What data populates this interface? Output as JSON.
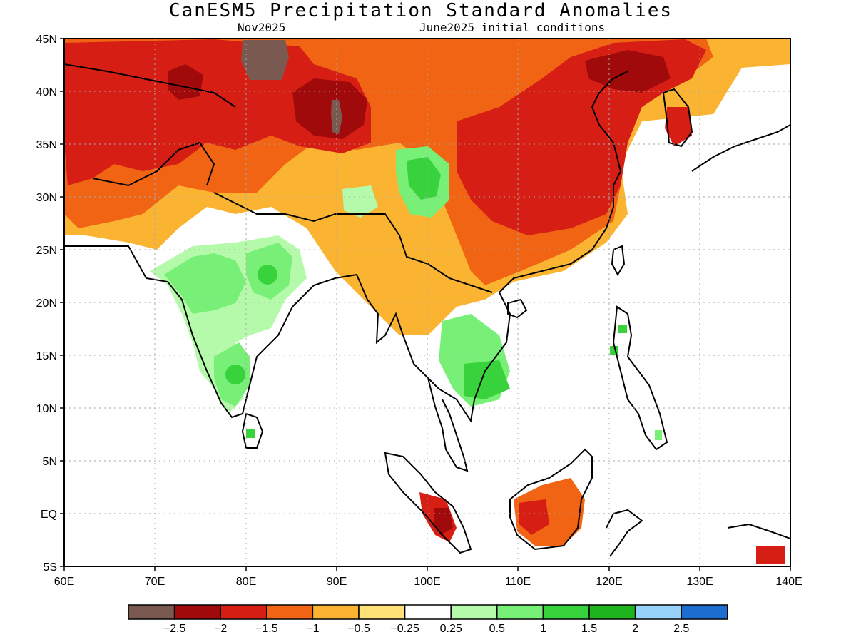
{
  "title": "CanESM5 Precipitation Standard Anomalies",
  "subtitle_left": "Nov2025",
  "subtitle_right": "June2025 initial conditions",
  "colors": {
    "c1": "#7a5a50",
    "c2": "#a00a0a",
    "c3": "#d71e14",
    "c4": "#f06414",
    "c5": "#fab432",
    "c6": "#ffe178",
    "c7": "#ffffff",
    "c8": "#b4faaa",
    "c9": "#78f078",
    "c10": "#37d23c",
    "c11": "#1eb41e",
    "c12": "#96d2fa",
    "c13": "#1e6ed2"
  },
  "lat_labels": [
    "45N",
    "40N",
    "35N",
    "30N",
    "25N",
    "20N",
    "15N",
    "10N",
    "5N",
    "EQ",
    "5S"
  ],
  "lon_labels": [
    "60E",
    "70E",
    "80E",
    "90E",
    "100E",
    "110E",
    "120E",
    "130E",
    "140E"
  ],
  "colorbar": {
    "colors": [
      "#7a5a50",
      "#a00a0a",
      "#d71e14",
      "#f06414",
      "#fab432",
      "#ffe178",
      "#ffffff",
      "#b4faaa",
      "#78f078",
      "#37d23c",
      "#1eb41e",
      "#96d2fa",
      "#1e6ed2"
    ],
    "labels": [
      "−2.5",
      "−2",
      "−1.5",
      "−1",
      "−0.5",
      "−0.25",
      "0.25",
      "0.5",
      "1",
      "1.5",
      "2",
      "2.5"
    ]
  }
}
